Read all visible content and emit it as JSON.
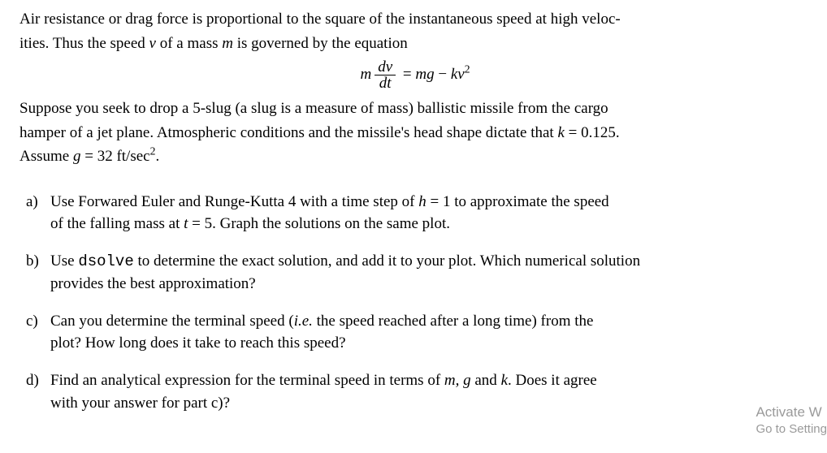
{
  "intro": {
    "line1_a": "Air resistance or drag force is proportional to the square of the instantaneous speed at high veloc-",
    "line2_a": "ities. Thus the speed ",
    "line2_b": " of a mass ",
    "line2_c": " is governed by the equation",
    "var_v": "v",
    "var_m": "m"
  },
  "equation": {
    "m": "m",
    "dv": "dv",
    "dt": "dt",
    "eq": " = ",
    "mg": "mg",
    "minus": " − ",
    "k": "k",
    "v": "v",
    "sq": "2"
  },
  "setup": {
    "line1": "Suppose you seek to drop a 5-slug (a slug is a measure of mass) ballistic missile from the cargo",
    "line2_a": "hamper of a jet plane.  Atmospheric conditions and the missile's head shape dictate that ",
    "line2_k": "k",
    "line2_b": " = 0.125.",
    "line3_a": "Assume ",
    "line3_g": "g",
    "line3_b": " = 32 ft/sec",
    "line3_sq": "2",
    "line3_c": "."
  },
  "items": {
    "a": {
      "label": "a)",
      "t1": "Use Forwared Euler and Runge-Kutta 4 with a time step of ",
      "h": "h",
      "t2": " = 1 to approximate the speed",
      "t3": "of the falling mass at ",
      "tvar": "t",
      "t4": " = 5. Graph the solutions on the same plot."
    },
    "b": {
      "label": "b)",
      "t1": "Use ",
      "cmd": "dsolve",
      "t2": " to determine the exact solution, and add it to your plot. Which numerical solution",
      "t3": "provides the best approximation?"
    },
    "c": {
      "label": "c)",
      "t1": "Can you determine the terminal speed (",
      "ie": "i.e.",
      "t2": " the speed reached after a long time) from the",
      "t3": "plot? How long does it take to reach this speed?"
    },
    "d": {
      "label": "d)",
      "t1": "Find an analytical expression for the terminal speed in terms of ",
      "mgk": "m, g",
      "t1b": " and ",
      "kk": "k",
      "t2": ". Does it agree",
      "t3": "with your answer for part c)?"
    }
  },
  "watermark": {
    "l1": "Activate W",
    "l2": "Go to Setting"
  }
}
